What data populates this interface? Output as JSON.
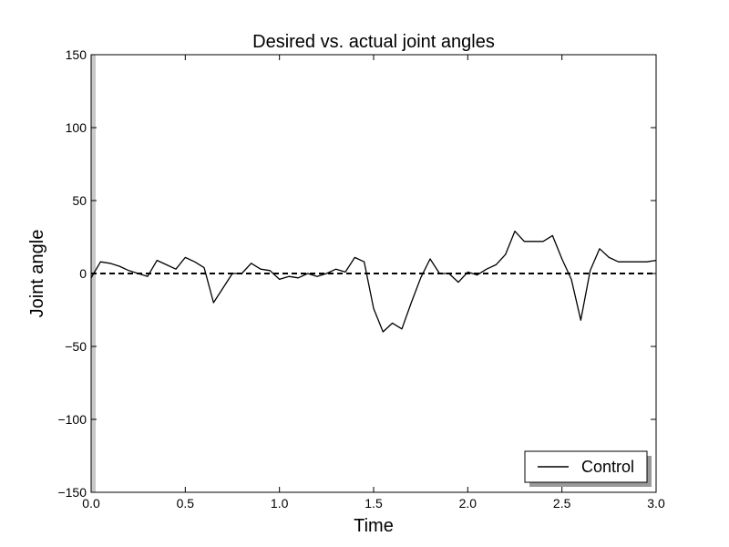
{
  "chart_data": {
    "type": "line",
    "title": "Desired vs. actual joint angles",
    "xlabel": "Time",
    "ylabel": "Joint angle",
    "xlim": [
      0.0,
      3.0
    ],
    "ylim": [
      -150,
      150
    ],
    "xticks": [
      0.0,
      0.5,
      1.0,
      1.5,
      2.0,
      2.5,
      3.0
    ],
    "xtick_labels": [
      "0.0",
      "0.5",
      "1.0",
      "1.5",
      "2.0",
      "2.5",
      "3.0"
    ],
    "yticks": [
      -150,
      -100,
      -50,
      0,
      50,
      100,
      150
    ],
    "ytick_labels": [
      "−150",
      "−100",
      "−50",
      "0",
      "50",
      "100",
      "150"
    ],
    "grid": false,
    "legend_position": "lower-right",
    "series": [
      {
        "name": "Control",
        "style": "solid",
        "color": "#000000",
        "x": [
          0.0,
          0.05,
          0.1,
          0.15,
          0.2,
          0.25,
          0.3,
          0.35,
          0.4,
          0.45,
          0.5,
          0.55,
          0.6,
          0.65,
          0.7,
          0.75,
          0.8,
          0.85,
          0.9,
          0.95,
          1.0,
          1.05,
          1.1,
          1.15,
          1.2,
          1.25,
          1.3,
          1.35,
          1.4,
          1.45,
          1.5,
          1.55,
          1.6,
          1.65,
          1.7,
          1.75,
          1.8,
          1.85,
          1.9,
          1.95,
          2.0,
          2.05,
          2.1,
          2.15,
          2.2,
          2.25,
          2.3,
          2.35,
          2.4,
          2.45,
          2.5,
          2.55,
          2.6,
          2.65,
          2.7,
          2.75,
          2.8,
          2.85,
          2.9,
          2.95,
          3.0
        ],
        "y": [
          -3,
          8,
          7,
          5,
          2,
          0,
          -2,
          9,
          6,
          3,
          11,
          8,
          4,
          -20,
          -10,
          0,
          0,
          7,
          3,
          2,
          -4,
          -2,
          -3,
          0,
          -2,
          0,
          3,
          1,
          11,
          8,
          -24,
          -40,
          -34,
          -38,
          -20,
          -3,
          10,
          0,
          0,
          -6,
          1,
          -1,
          3,
          6,
          13,
          29,
          22,
          22,
          22,
          26,
          10,
          -4,
          -32,
          2,
          17,
          11,
          8,
          8,
          8,
          8,
          9
        ]
      },
      {
        "name": "",
        "style": "dashed",
        "color": "#000000",
        "x": [
          0.0,
          3.0
        ],
        "y": [
          0,
          0
        ]
      }
    ]
  }
}
